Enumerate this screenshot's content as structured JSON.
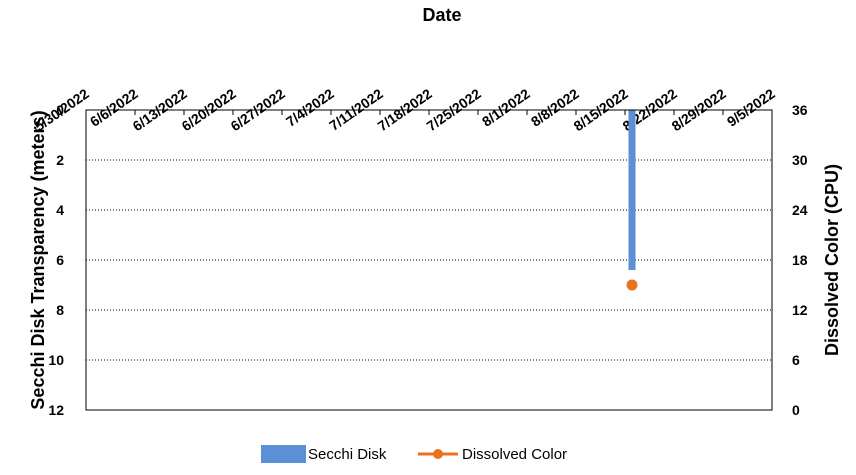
{
  "chart_data": {
    "type": "bar+line",
    "xlabel": "Date",
    "ylabel_left": "Secchi Disk Transparency (meters)",
    "ylabel_right": "Dissolved Color (CPU)",
    "x_ticks": [
      "5/30/2022",
      "6/6/2022",
      "6/13/2022",
      "6/20/2022",
      "6/27/2022",
      "7/4/2022",
      "7/11/2022",
      "7/18/2022",
      "7/25/2022",
      "8/1/2022",
      "8/8/2022",
      "8/15/2022",
      "8/22/2022",
      "8/29/2022",
      "9/5/2022"
    ],
    "xlim": [
      "5/30/2022",
      "9/5/2022"
    ],
    "y_left": {
      "range": [
        0,
        12
      ],
      "inverted": true,
      "ticks": [
        "0",
        "2",
        "4",
        "6",
        "8",
        "10",
        "12"
      ]
    },
    "y_right": {
      "range": [
        0,
        36
      ],
      "ticks": [
        "36",
        "30",
        "24",
        "18",
        "12",
        "6",
        "0"
      ]
    },
    "grid": "horizontal dotted",
    "series": [
      {
        "name": "Secchi Disk",
        "type": "bar",
        "axis": "left",
        "color": "#5B8FD6",
        "points": [
          {
            "x": "8/16/2022",
            "y": 6.4
          }
        ]
      },
      {
        "name": "Dissolved Color",
        "type": "line",
        "axis": "right",
        "color": "#E8731C",
        "points": [
          {
            "x": "8/16/2022",
            "y": 15
          }
        ]
      }
    ],
    "legend": {
      "placement": "bottom",
      "entries": [
        {
          "label": "Secchi Disk",
          "color": "#5B8FD6",
          "marker": "bar"
        },
        {
          "label": "Dissolved Color",
          "color": "#E8731C",
          "marker": "line-dot"
        }
      ]
    }
  }
}
